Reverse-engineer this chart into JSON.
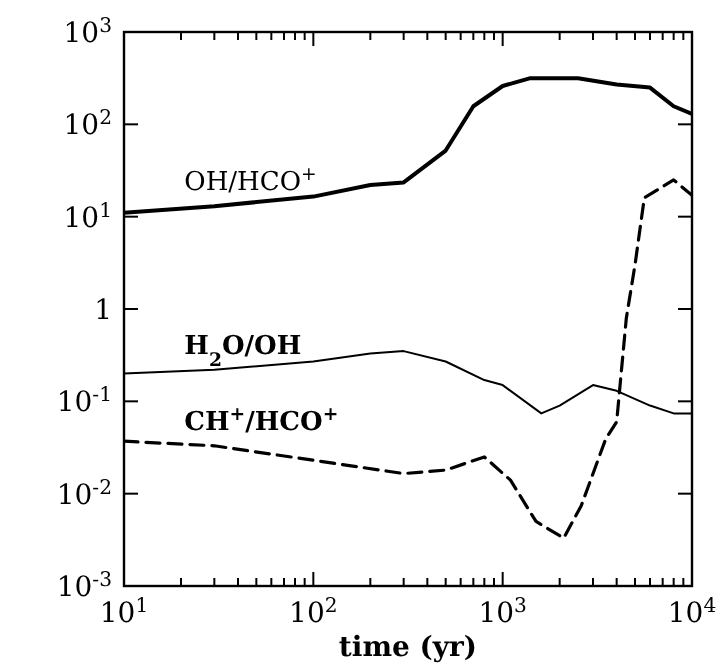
{
  "chart_data": {
    "type": "line",
    "xlabel": "time (yr)",
    "log": "xy",
    "xlim": [
      10,
      10000
    ],
    "ylim": [
      0.001,
      1000
    ],
    "xticks": [
      {
        "value": 10,
        "label": "10$^{1}$"
      },
      {
        "value": 20,
        "label": null
      },
      {
        "value": 30,
        "label": null
      },
      {
        "value": 40,
        "label": null
      },
      {
        "value": 50,
        "label": null
      },
      {
        "value": 60,
        "label": null
      },
      {
        "value": 70,
        "label": null
      },
      {
        "value": 80,
        "label": null
      },
      {
        "value": 90,
        "label": null
      },
      {
        "value": 100,
        "label": "10$^{2}$"
      },
      {
        "value": 200,
        "label": null
      },
      {
        "value": 300,
        "label": null
      },
      {
        "value": 400,
        "label": null
      },
      {
        "value": 500,
        "label": null
      },
      {
        "value": 600,
        "label": null
      },
      {
        "value": 700,
        "label": null
      },
      {
        "value": 800,
        "label": null
      },
      {
        "value": 900,
        "label": null
      },
      {
        "value": 1000,
        "label": "10$^{3}$"
      },
      {
        "value": 2000,
        "label": null
      },
      {
        "value": 3000,
        "label": null
      },
      {
        "value": 4000,
        "label": null
      },
      {
        "value": 5000,
        "label": null
      },
      {
        "value": 6000,
        "label": null
      },
      {
        "value": 7000,
        "label": null
      },
      {
        "value": 8000,
        "label": null
      },
      {
        "value": 9000,
        "label": null
      },
      {
        "value": 10000,
        "label": "10$^{4}$"
      }
    ],
    "yticks": [
      {
        "value": 0.001,
        "label": "10$^{-3}$"
      },
      {
        "value": 0.01,
        "label": "10$^{-2}$"
      },
      {
        "value": 0.1,
        "label": "10$^{-1}$"
      },
      {
        "value": 1,
        "label": "1"
      },
      {
        "value": 10,
        "label": "10$^{1}$"
      },
      {
        "value": 100,
        "label": "10$^{2}$"
      },
      {
        "value": 1000,
        "label": "10$^{3}$"
      }
    ],
    "series": [
      {
        "name": "OH/HCO$^{+}$",
        "color": "#000000",
        "line_style": "solid",
        "x": [
          10,
          30,
          100,
          200,
          300,
          500,
          700,
          1000,
          1400,
          2500,
          4000,
          6000,
          8000,
          10000
        ],
        "values": [
          11,
          13,
          16.5,
          22,
          23.5,
          52,
          157,
          260,
          316,
          316,
          270,
          250,
          157,
          130
        ]
      },
      {
        "name": "H$_{2}$O/OH",
        "color": "#000000",
        "line_style": "solid",
        "x": [
          10,
          30,
          100,
          200,
          300,
          500,
          800,
          1000,
          1600,
          2000,
          3000,
          4000,
          6000,
          8000,
          10000
        ],
        "values": [
          0.2,
          0.22,
          0.27,
          0.33,
          0.35,
          0.27,
          0.17,
          0.15,
          0.074,
          0.09,
          0.15,
          0.13,
          0.09,
          0.074,
          0.074
        ]
      },
      {
        "name": "CH$^{+}$/HCO$^{+}$",
        "color": "#000000",
        "line_style": "dashed",
        "x": [
          10,
          30,
          100,
          300,
          500,
          800,
          1100,
          1500,
          2100,
          2600,
          3500,
          4000,
          4500,
          5000,
          5600,
          8000,
          10000
        ],
        "values": [
          0.037,
          0.033,
          0.023,
          0.0165,
          0.018,
          0.025,
          0.014,
          0.005,
          0.0033,
          0.0074,
          0.039,
          0.06,
          0.8,
          3,
          16,
          25,
          17
        ]
      }
    ]
  }
}
